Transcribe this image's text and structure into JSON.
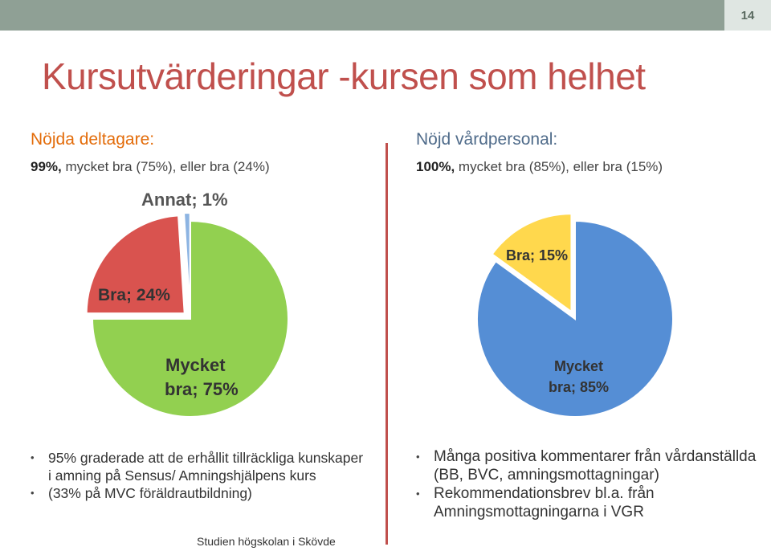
{
  "slide_number": "14",
  "title": "Kursutvärderingar -kursen som helhet",
  "left": {
    "heading": "Nöjda deltagare:",
    "summary_bold": "99%,",
    "summary_rest": " mycket bra (75%), eller bra (24%)",
    "bullets": [
      "95% graderade att de erhållit tillräckliga kunskaper i amning på Sensus/ Amningshjälpens kurs",
      "(33% på MVC föräldrautbildning)"
    ]
  },
  "right": {
    "heading": "Nöjd vårdpersonal:",
    "summary_bold": "100%,",
    "summary_rest": " mycket bra (85%), eller bra (15%)",
    "bullets": [
      "Många positiva kommentarer från vårdanställda (BB, BVC, amningsmottagningar)",
      "Rekommendationsbrev bl.a. från Amningsmottagningarna i VGR"
    ]
  },
  "footer": "Studien högskolan i Skövde",
  "chart_data": [
    {
      "type": "pie",
      "slices": [
        {
          "label": "Mycket bra; 75%",
          "value": 75,
          "color": "#92d050"
        },
        {
          "label": "Bra; 24%",
          "value": 24,
          "color": "#d9534f"
        },
        {
          "label": "Annat; 1%",
          "value": 1,
          "color": "#8db4e2"
        }
      ]
    },
    {
      "type": "pie",
      "slices": [
        {
          "label": "Mycket bra; 85%",
          "value": 85,
          "color": "#558ed5"
        },
        {
          "label": "Bra; 15%",
          "value": 15,
          "color": "#ffd84d"
        }
      ]
    }
  ]
}
